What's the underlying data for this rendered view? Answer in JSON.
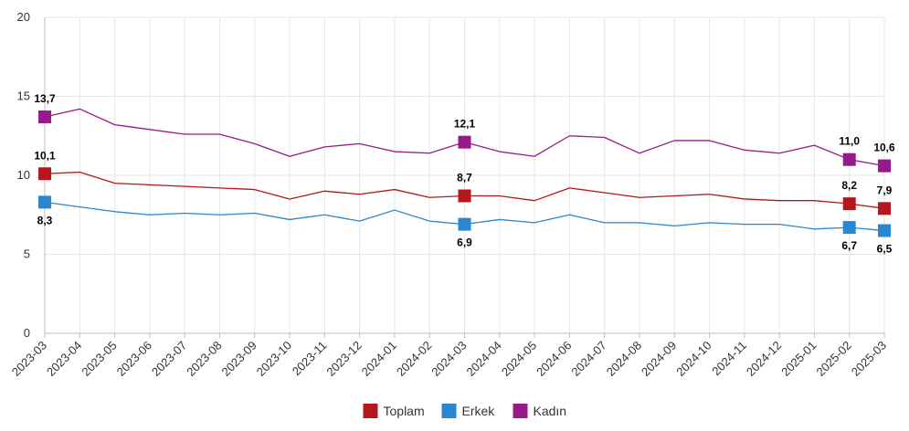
{
  "chart_data": {
    "type": "line",
    "title": "",
    "xlabel": "",
    "ylabel": "",
    "ylim": [
      0,
      20
    ],
    "y_ticks": [
      "0",
      "5",
      "10",
      "15",
      "20"
    ],
    "grid": true,
    "legend_position": "bottom-center",
    "categories": [
      "2023-03",
      "2023-04",
      "2023-05",
      "2023-06",
      "2023-07",
      "2023-08",
      "2023-09",
      "2023-10",
      "2023-11",
      "2023-12",
      "2024-01",
      "2024-02",
      "2024-03",
      "2024-04",
      "2024-05",
      "2024-06",
      "2024-07",
      "2024-08",
      "2024-09",
      "2024-10",
      "2024-11",
      "2024-12",
      "2025-01",
      "2025-02",
      "2025-03"
    ],
    "series": [
      {
        "name": "Toplam",
        "color": "#b5171c",
        "values": [
          10.1,
          10.2,
          9.5,
          9.4,
          9.3,
          9.2,
          9.1,
          8.5,
          9.0,
          8.8,
          9.1,
          8.6,
          8.7,
          8.7,
          8.4,
          9.2,
          8.9,
          8.6,
          8.7,
          8.8,
          8.5,
          8.4,
          8.4,
          8.2,
          7.9
        ],
        "labels": [
          {
            "index": 0,
            "text": "10,1"
          },
          {
            "index": 12,
            "text": "8,7"
          },
          {
            "index": 23,
            "text": "8,2"
          },
          {
            "index": 24,
            "text": "7,9"
          }
        ]
      },
      {
        "name": "Erkek",
        "color": "#2a86cf",
        "values": [
          8.3,
          8.0,
          7.7,
          7.5,
          7.6,
          7.5,
          7.6,
          7.2,
          7.5,
          7.1,
          7.8,
          7.1,
          6.9,
          7.2,
          7.0,
          7.5,
          7.0,
          7.0,
          6.8,
          7.0,
          6.9,
          6.9,
          6.6,
          6.7,
          6.5
        ],
        "labels": [
          {
            "index": 0,
            "text": "8,3"
          },
          {
            "index": 12,
            "text": "6,9"
          },
          {
            "index": 23,
            "text": "6,7"
          },
          {
            "index": 24,
            "text": "6,5"
          }
        ]
      },
      {
        "name": "Kadın",
        "color": "#951b8b",
        "values": [
          13.7,
          14.2,
          13.2,
          12.9,
          12.6,
          12.6,
          12.0,
          11.2,
          11.8,
          12.0,
          11.5,
          11.4,
          12.1,
          11.5,
          11.2,
          12.5,
          12.4,
          11.4,
          12.2,
          12.2,
          11.6,
          11.4,
          11.9,
          11.0,
          10.6
        ],
        "labels": [
          {
            "index": 0,
            "text": "13,7"
          },
          {
            "index": 12,
            "text": "12,1"
          },
          {
            "index": 23,
            "text": "11,0"
          },
          {
            "index": 24,
            "text": "10,6"
          }
        ]
      }
    ]
  }
}
